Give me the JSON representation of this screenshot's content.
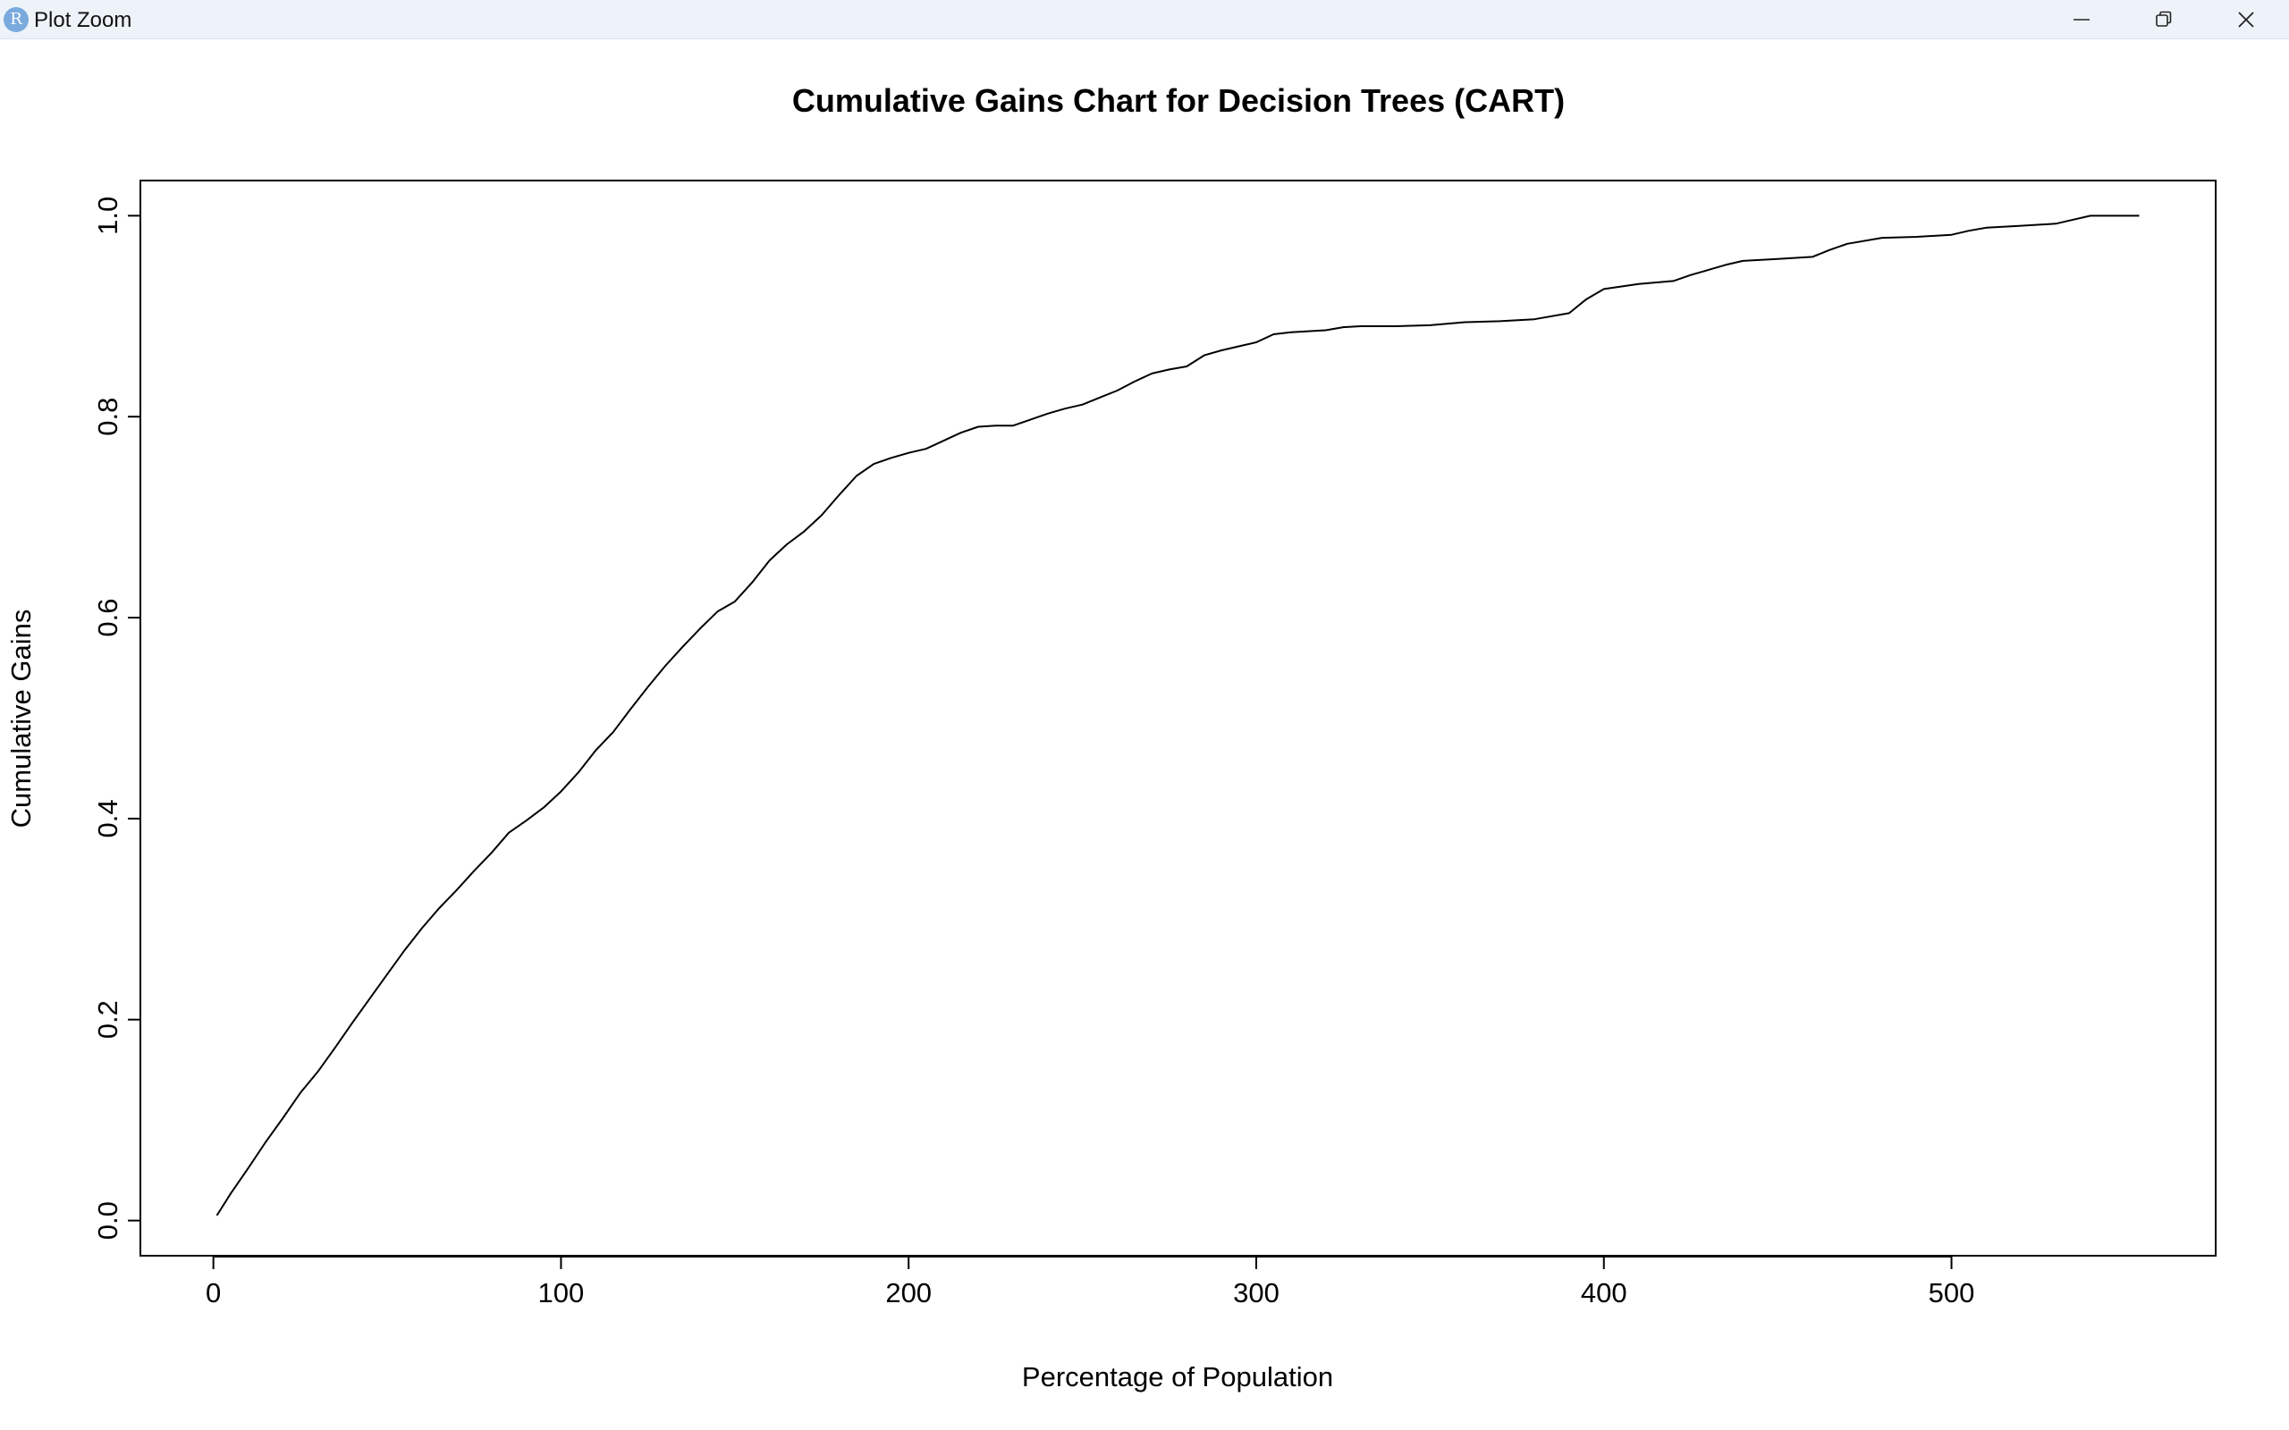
{
  "window": {
    "title": "Plot Zoom",
    "icon": "r-logo-icon",
    "controls": [
      "minimize-icon",
      "restore-icon",
      "close-icon"
    ]
  },
  "chart_data": {
    "type": "line",
    "title": "Cumulative Gains Chart for Decision Trees (CART)",
    "xlabel": "Percentage of Population",
    "ylabel": "Cumulative Gains",
    "xlim": [
      -21,
      576
    ],
    "ylim": [
      -0.035,
      1.035
    ],
    "xticks": [
      0,
      100,
      200,
      300,
      400,
      500
    ],
    "xtick_labels": [
      "0",
      "100",
      "200",
      "300",
      "400",
      "500"
    ],
    "yticks": [
      0.0,
      0.2,
      0.4,
      0.6,
      0.8,
      1.0
    ],
    "ytick_labels": [
      "0.0",
      "0.2",
      "0.4",
      "0.6",
      "0.8",
      "1.0"
    ],
    "grid": false,
    "line_color": "#000000",
    "series": [
      {
        "x": [
          1,
          5,
          10,
          15,
          20,
          25,
          30,
          35,
          40,
          45,
          50,
          55,
          60,
          65,
          70,
          75,
          80,
          85,
          90,
          95,
          100,
          105,
          110,
          115,
          120,
          125,
          130,
          135,
          140,
          145,
          150,
          155,
          160,
          165,
          170,
          175,
          180,
          185,
          190,
          195,
          200,
          205,
          210,
          215,
          220,
          225,
          230,
          235,
          240,
          245,
          250,
          255,
          260,
          265,
          270,
          275,
          280,
          285,
          290,
          295,
          300,
          305,
          310,
          315,
          320,
          325,
          330,
          340,
          350,
          360,
          370,
          380,
          390,
          395,
          400,
          410,
          420,
          425,
          430,
          435,
          440,
          450,
          460,
          465,
          470,
          480,
          490,
          500,
          505,
          510,
          520,
          530,
          535,
          540,
          550,
          554
        ],
        "y": [
          0.005,
          0.027,
          0.052,
          0.078,
          0.102,
          0.127,
          0.148,
          0.172,
          0.197,
          0.221,
          0.245,
          0.269,
          0.291,
          0.311,
          0.329,
          0.348,
          0.366,
          0.386,
          0.398,
          0.411,
          0.427,
          0.446,
          0.468,
          0.486,
          0.509,
          0.531,
          0.552,
          0.571,
          0.589,
          0.606,
          0.616,
          0.635,
          0.657,
          0.673,
          0.686,
          0.702,
          0.722,
          0.741,
          0.753,
          0.759,
          0.764,
          0.768,
          0.776,
          0.784,
          0.79,
          0.791,
          0.791,
          0.797,
          0.803,
          0.808,
          0.812,
          0.819,
          0.826,
          0.835,
          0.843,
          0.847,
          0.85,
          0.861,
          0.866,
          0.87,
          0.874,
          0.882,
          0.884,
          0.885,
          0.886,
          0.889,
          0.89,
          0.89,
          0.891,
          0.894,
          0.895,
          0.897,
          0.903,
          0.917,
          0.927,
          0.932,
          0.935,
          0.941,
          0.946,
          0.951,
          0.955,
          0.957,
          0.959,
          0.966,
          0.972,
          0.978,
          0.979,
          0.981,
          0.985,
          0.988,
          0.99,
          0.992,
          0.996,
          1.0,
          1.0,
          1.0
        ]
      }
    ]
  }
}
